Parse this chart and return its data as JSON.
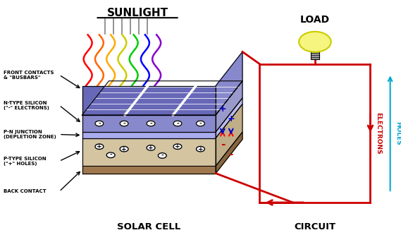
{
  "background_color": "#ffffff",
  "sunlight_label": "SUNLIGHT",
  "solar_cell_label": "SOLAR CELL",
  "circuit_label": "CIRCUIT",
  "load_label": "LOAD",
  "electrons_label": "ELECTRONS",
  "holes_label": "HOLES",
  "wave_colors": [
    "#ff0000",
    "#ff6600",
    "#ffaa00",
    "#cccc00",
    "#00cc00",
    "#0000ff",
    "#8800cc"
  ],
  "cell_blue": "#6868b8",
  "cell_blue_right": "#8888cc",
  "cell_beige": "#d4c4a0",
  "cell_beige_right": "#c0ae88",
  "cell_brown": "#a07850",
  "cell_brown_right": "#886640",
  "n_layer_color": "#8888cc",
  "n_layer_right": "#9999cc",
  "dep_color": "#aaaaee",
  "dep_right": "#bbbbee",
  "circuit_color": "#cc0000",
  "holes_color": "#00aacc",
  "bulb_color": "#f5f580",
  "bulb_outline": "#cccc00",
  "bulb_base": "#aaaaaa"
}
